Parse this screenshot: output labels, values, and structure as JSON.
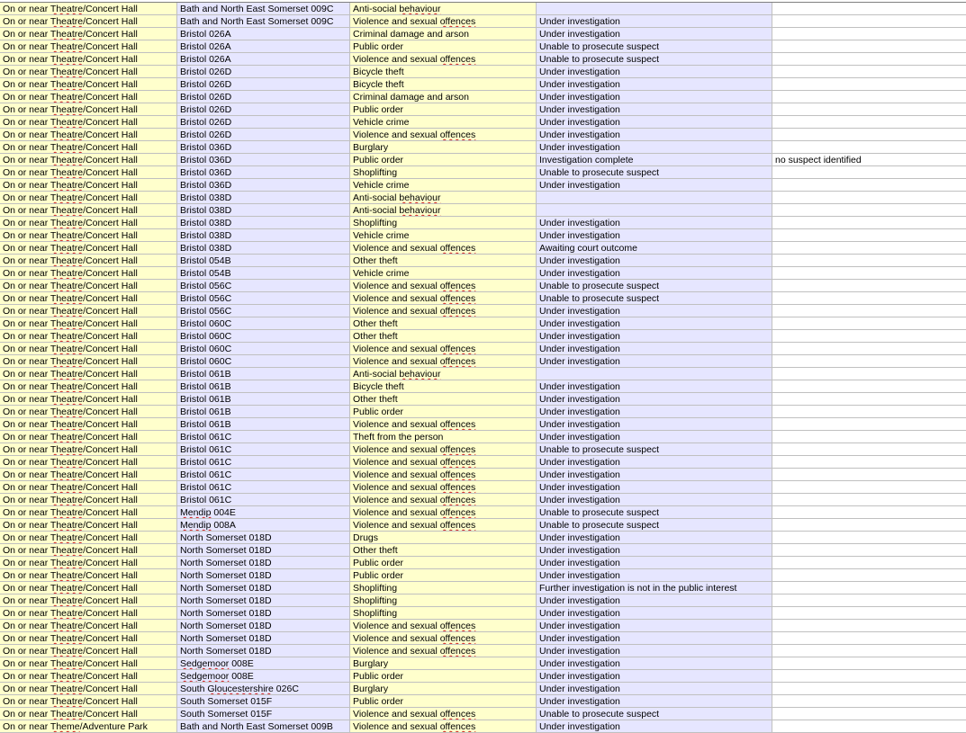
{
  "rows": [
    [
      "On or near Theatre/Concert Hall",
      "Bath and North East Somerset 009C",
      "Anti-social behaviour",
      "",
      ""
    ],
    [
      "On or near Theatre/Concert Hall",
      "Bath and North East Somerset 009C",
      "Violence and sexual offences",
      "Under investigation",
      ""
    ],
    [
      "On or near Theatre/Concert Hall",
      "Bristol 026A",
      "Criminal damage and arson",
      "Under investigation",
      ""
    ],
    [
      "On or near Theatre/Concert Hall",
      "Bristol 026A",
      "Public order",
      "Unable to prosecute suspect",
      ""
    ],
    [
      "On or near Theatre/Concert Hall",
      "Bristol 026A",
      "Violence and sexual offences",
      "Unable to prosecute suspect",
      ""
    ],
    [
      "On or near Theatre/Concert Hall",
      "Bristol 026D",
      "Bicycle theft",
      "Under investigation",
      ""
    ],
    [
      "On or near Theatre/Concert Hall",
      "Bristol 026D",
      "Bicycle theft",
      "Under investigation",
      ""
    ],
    [
      "On or near Theatre/Concert Hall",
      "Bristol 026D",
      "Criminal damage and arson",
      "Under investigation",
      ""
    ],
    [
      "On or near Theatre/Concert Hall",
      "Bristol 026D",
      "Public order",
      "Under investigation",
      ""
    ],
    [
      "On or near Theatre/Concert Hall",
      "Bristol 026D",
      "Vehicle crime",
      "Under investigation",
      ""
    ],
    [
      "On or near Theatre/Concert Hall",
      "Bristol 026D",
      "Violence and sexual offences",
      "Under investigation",
      ""
    ],
    [
      "On or near Theatre/Concert Hall",
      "Bristol 036D",
      "Burglary",
      "Under investigation",
      ""
    ],
    [
      "On or near Theatre/Concert Hall",
      "Bristol 036D",
      "Public order",
      "Investigation complete",
      "no suspect identified"
    ],
    [
      "On or near Theatre/Concert Hall",
      "Bristol 036D",
      "Shoplifting",
      "Unable to prosecute suspect",
      ""
    ],
    [
      "On or near Theatre/Concert Hall",
      "Bristol 036D",
      "Vehicle crime",
      "Under investigation",
      ""
    ],
    [
      "On or near Theatre/Concert Hall",
      "Bristol 038D",
      "Anti-social behaviour",
      "",
      ""
    ],
    [
      "On or near Theatre/Concert Hall",
      "Bristol 038D",
      "Anti-social behaviour",
      "",
      ""
    ],
    [
      "On or near Theatre/Concert Hall",
      "Bristol 038D",
      "Shoplifting",
      "Under investigation",
      ""
    ],
    [
      "On or near Theatre/Concert Hall",
      "Bristol 038D",
      "Vehicle crime",
      "Under investigation",
      ""
    ],
    [
      "On or near Theatre/Concert Hall",
      "Bristol 038D",
      "Violence and sexual offences",
      "Awaiting court outcome",
      ""
    ],
    [
      "On or near Theatre/Concert Hall",
      "Bristol 054B",
      "Other theft",
      "Under investigation",
      ""
    ],
    [
      "On or near Theatre/Concert Hall",
      "Bristol 054B",
      "Vehicle crime",
      "Under investigation",
      ""
    ],
    [
      "On or near Theatre/Concert Hall",
      "Bristol 056C",
      "Violence and sexual offences",
      "Unable to prosecute suspect",
      ""
    ],
    [
      "On or near Theatre/Concert Hall",
      "Bristol 056C",
      "Violence and sexual offences",
      "Unable to prosecute suspect",
      ""
    ],
    [
      "On or near Theatre/Concert Hall",
      "Bristol 056C",
      "Violence and sexual offences",
      "Under investigation",
      ""
    ],
    [
      "On or near Theatre/Concert Hall",
      "Bristol 060C",
      "Other theft",
      "Under investigation",
      ""
    ],
    [
      "On or near Theatre/Concert Hall",
      "Bristol 060C",
      "Other theft",
      "Under investigation",
      ""
    ],
    [
      "On or near Theatre/Concert Hall",
      "Bristol 060C",
      "Violence and sexual offences",
      "Under investigation",
      ""
    ],
    [
      "On or near Theatre/Concert Hall",
      "Bristol 060C",
      "Violence and sexual offences",
      "Under investigation",
      ""
    ],
    [
      "On or near Theatre/Concert Hall",
      "Bristol 061B",
      "Anti-social behaviour",
      "",
      ""
    ],
    [
      "On or near Theatre/Concert Hall",
      "Bristol 061B",
      "Bicycle theft",
      "Under investigation",
      ""
    ],
    [
      "On or near Theatre/Concert Hall",
      "Bristol 061B",
      "Other theft",
      "Under investigation",
      ""
    ],
    [
      "On or near Theatre/Concert Hall",
      "Bristol 061B",
      "Public order",
      "Under investigation",
      ""
    ],
    [
      "On or near Theatre/Concert Hall",
      "Bristol 061B",
      "Violence and sexual offences",
      "Under investigation",
      ""
    ],
    [
      "On or near Theatre/Concert Hall",
      "Bristol 061C",
      "Theft from the person",
      "Under investigation",
      ""
    ],
    [
      "On or near Theatre/Concert Hall",
      "Bristol 061C",
      "Violence and sexual offences",
      "Unable to prosecute suspect",
      ""
    ],
    [
      "On or near Theatre/Concert Hall",
      "Bristol 061C",
      "Violence and sexual offences",
      "Under investigation",
      ""
    ],
    [
      "On or near Theatre/Concert Hall",
      "Bristol 061C",
      "Violence and sexual offences",
      "Under investigation",
      ""
    ],
    [
      "On or near Theatre/Concert Hall",
      "Bristol 061C",
      "Violence and sexual offences",
      "Under investigation",
      ""
    ],
    [
      "On or near Theatre/Concert Hall",
      "Bristol 061C",
      "Violence and sexual offences",
      "Under investigation",
      ""
    ],
    [
      "On or near Theatre/Concert Hall",
      "Mendip 004E",
      "Violence and sexual offences",
      "Unable to prosecute suspect",
      ""
    ],
    [
      "On or near Theatre/Concert Hall",
      "Mendip 008A",
      "Violence and sexual offences",
      "Unable to prosecute suspect",
      ""
    ],
    [
      "On or near Theatre/Concert Hall",
      "North Somerset 018D",
      "Drugs",
      "Under investigation",
      ""
    ],
    [
      "On or near Theatre/Concert Hall",
      "North Somerset 018D",
      "Other theft",
      "Under investigation",
      ""
    ],
    [
      "On or near Theatre/Concert Hall",
      "North Somerset 018D",
      "Public order",
      "Under investigation",
      ""
    ],
    [
      "On or near Theatre/Concert Hall",
      "North Somerset 018D",
      "Public order",
      "Under investigation",
      ""
    ],
    [
      "On or near Theatre/Concert Hall",
      "North Somerset 018D",
      "Shoplifting",
      "Further investigation is not in the public interest",
      ""
    ],
    [
      "On or near Theatre/Concert Hall",
      "North Somerset 018D",
      "Shoplifting",
      "Under investigation",
      ""
    ],
    [
      "On or near Theatre/Concert Hall",
      "North Somerset 018D",
      "Shoplifting",
      "Under investigation",
      ""
    ],
    [
      "On or near Theatre/Concert Hall",
      "North Somerset 018D",
      "Violence and sexual offences",
      "Under investigation",
      ""
    ],
    [
      "On or near Theatre/Concert Hall",
      "North Somerset 018D",
      "Violence and sexual offences",
      "Under investigation",
      ""
    ],
    [
      "On or near Theatre/Concert Hall",
      "North Somerset 018D",
      "Violence and sexual offences",
      "Under investigation",
      ""
    ],
    [
      "On or near Theatre/Concert Hall",
      "Sedgemoor 008E",
      "Burglary",
      "Under investigation",
      ""
    ],
    [
      "On or near Theatre/Concert Hall",
      "Sedgemoor 008E",
      "Public order",
      "Under investigation",
      ""
    ],
    [
      "On or near Theatre/Concert Hall",
      "South Gloucestershire 026C",
      "Burglary",
      "Under investigation",
      ""
    ],
    [
      "On or near Theatre/Concert Hall",
      "South Somerset 015F",
      "Public order",
      "Under investigation",
      ""
    ],
    [
      "On or near Theatre/Concert Hall",
      "South Somerset 015F",
      "Violence and sexual offences",
      "Unable to prosecute suspect",
      ""
    ],
    [
      "On or near Theme/Adventure Park",
      "Bath and North East Somerset 009B",
      "Violence and sexual offences",
      "Under investigation",
      ""
    ]
  ],
  "colors": {
    "col_yellow": "#ffffcc",
    "col_lavender": "#e6e6ff",
    "gridline": "#c0c0c0",
    "spellcheck": "#d02020"
  }
}
